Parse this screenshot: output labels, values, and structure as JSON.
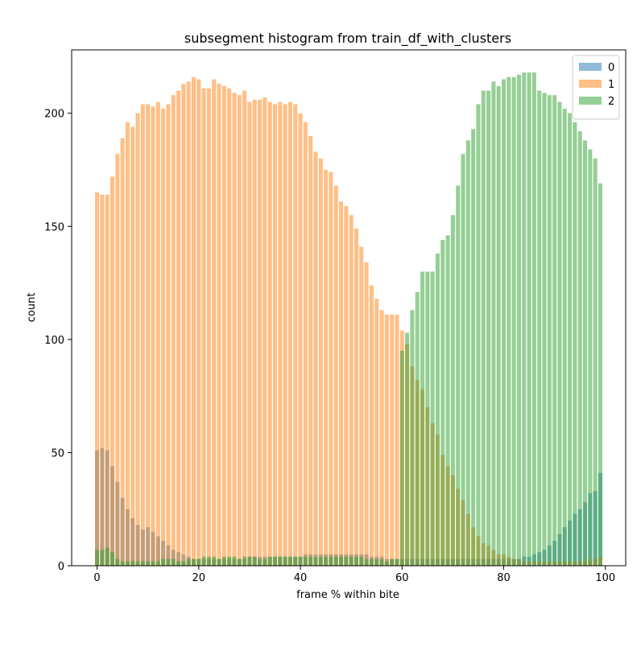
{
  "chart_data": {
    "type": "bar",
    "title": "subsegment histogram from train_df_with_clusters",
    "xlabel": "frame % within bite",
    "ylabel": "count",
    "xlim": [
      -5,
      104
    ],
    "ylim": [
      0,
      228
    ],
    "x_ticks": [
      0,
      20,
      40,
      60,
      80,
      100
    ],
    "y_ticks": [
      0,
      50,
      100,
      150,
      200
    ],
    "grid": false,
    "legend_position": "top-right",
    "bar_alpha": 0.5,
    "x": [
      0,
      1,
      2,
      3,
      4,
      5,
      6,
      7,
      8,
      9,
      10,
      11,
      12,
      13,
      14,
      15,
      16,
      17,
      18,
      19,
      20,
      21,
      22,
      23,
      24,
      25,
      26,
      27,
      28,
      29,
      30,
      31,
      32,
      33,
      34,
      35,
      36,
      37,
      38,
      39,
      40,
      41,
      42,
      43,
      44,
      45,
      46,
      47,
      48,
      49,
      50,
      51,
      52,
      53,
      54,
      55,
      56,
      57,
      58,
      59,
      60,
      61,
      62,
      63,
      64,
      65,
      66,
      67,
      68,
      69,
      70,
      71,
      72,
      73,
      74,
      75,
      76,
      77,
      78,
      79,
      80,
      81,
      82,
      83,
      84,
      85,
      86,
      87,
      88,
      89,
      90,
      91,
      92,
      93,
      94,
      95,
      96,
      97,
      98,
      99
    ],
    "series": [
      {
        "name": "0",
        "color": "#1f77b4",
        "values": [
          51,
          52,
          51,
          44,
          37,
          30,
          25,
          21,
          18,
          16,
          17,
          15,
          13,
          11,
          9,
          7,
          6,
          5,
          4,
          3,
          3,
          3,
          3,
          3,
          3,
          3,
          3,
          3,
          3,
          3,
          4,
          4,
          4,
          4,
          4,
          4,
          4,
          4,
          4,
          4,
          4,
          5,
          5,
          5,
          5,
          5,
          5,
          5,
          5,
          5,
          5,
          5,
          5,
          5,
          4,
          4,
          4,
          3,
          3,
          3,
          3,
          3,
          3,
          3,
          3,
          3,
          3,
          3,
          3,
          3,
          3,
          3,
          3,
          3,
          3,
          3,
          3,
          3,
          3,
          3,
          3,
          3,
          3,
          3,
          4,
          4,
          5,
          6,
          7,
          9,
          11,
          14,
          17,
          20,
          23,
          25,
          28,
          32,
          33,
          41
        ]
      },
      {
        "name": "1",
        "color": "#ff7f0e",
        "values": [
          165,
          164,
          164,
          172,
          182,
          189,
          196,
          194,
          200,
          204,
          204,
          203,
          205,
          202,
          204,
          208,
          210,
          213,
          214,
          216,
          215,
          211,
          211,
          215,
          213,
          212,
          211,
          209,
          208,
          210,
          205,
          206,
          206,
          207,
          205,
          204,
          205,
          204,
          205,
          204,
          200,
          196,
          190,
          183,
          180,
          175,
          174,
          168,
          161,
          159,
          155,
          149,
          141,
          134,
          124,
          118,
          113,
          111,
          111,
          111,
          104,
          98,
          88,
          82,
          78,
          70,
          63,
          58,
          49,
          44,
          40,
          34,
          29,
          23,
          17,
          13,
          10,
          9,
          7,
          5,
          5,
          4,
          3,
          3,
          2,
          2,
          2,
          2,
          2,
          2,
          2,
          2,
          2,
          2,
          2,
          2,
          2,
          3,
          3,
          4
        ]
      },
      {
        "name": "2",
        "color": "#2ca02c",
        "values": [
          7,
          7,
          8,
          6,
          3,
          2,
          2,
          2,
          2,
          2,
          2,
          2,
          2,
          3,
          3,
          3,
          2,
          2,
          3,
          3,
          3,
          4,
          4,
          4,
          3,
          4,
          4,
          4,
          3,
          4,
          4,
          4,
          3,
          3,
          4,
          4,
          4,
          4,
          4,
          4,
          4,
          4,
          4,
          4,
          4,
          4,
          4,
          4,
          4,
          4,
          4,
          4,
          4,
          3,
          3,
          3,
          3,
          2,
          3,
          3,
          95,
          103,
          113,
          121,
          130,
          130,
          130,
          138,
          144,
          146,
          155,
          168,
          182,
          188,
          193,
          204,
          210,
          210,
          214,
          212,
          215,
          216,
          216,
          217,
          218,
          218,
          218,
          210,
          209,
          208,
          208,
          205,
          202,
          200,
          196,
          192,
          188,
          184,
          180,
          169
        ]
      }
    ]
  }
}
